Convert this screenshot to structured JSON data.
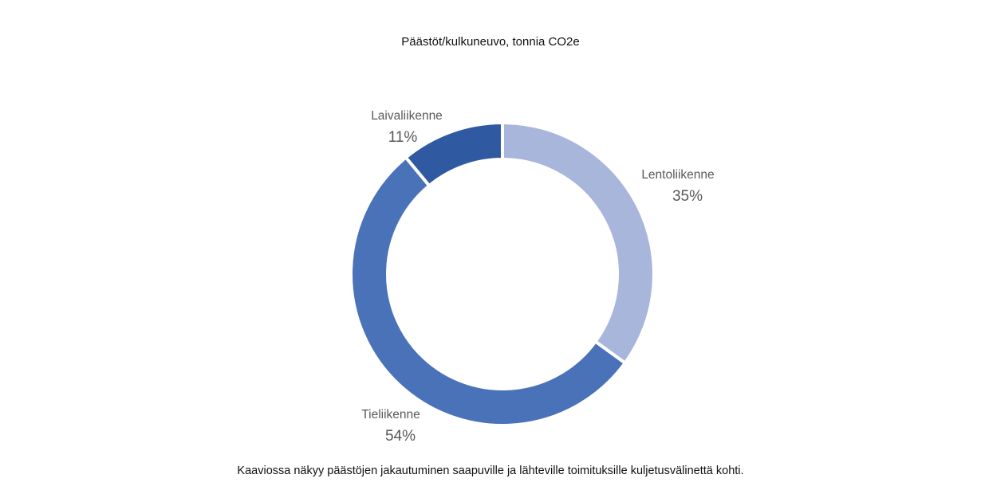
{
  "chart_data": {
    "type": "pie",
    "title": "Päästöt/kulkuneuvo, tonnia CO2e",
    "caption": "Kaaviossa näkyy päästöjen jakautuminen saapuville ja lähteville toimituksille kuljetusvälinettä kohti.",
    "donut": true,
    "slices": [
      {
        "label": "Lentoliikenne",
        "value": 35,
        "value_label": "35%",
        "color": "#a8b6dc"
      },
      {
        "label": "Tieliikenne",
        "value": 54,
        "value_label": "54%",
        "color": "#4a72b8"
      },
      {
        "label": "Laivaliikenne",
        "value": 11,
        "value_label": "11%",
        "color": "#2f5aa2"
      }
    ],
    "legend": "none"
  }
}
